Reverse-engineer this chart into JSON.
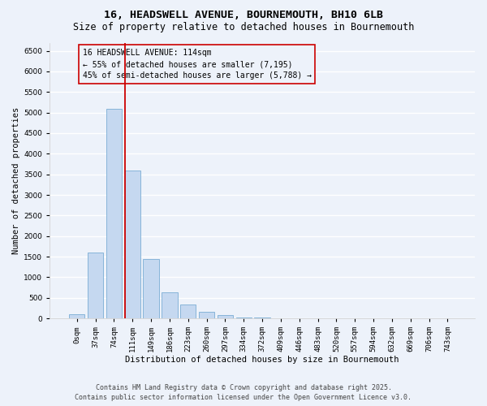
{
  "title_line1": "16, HEADSWELL AVENUE, BOURNEMOUTH, BH10 6LB",
  "title_line2": "Size of property relative to detached houses in Bournemouth",
  "xlabel": "Distribution of detached houses by size in Bournemouth",
  "ylabel": "Number of detached properties",
  "bar_labels": [
    "0sqm",
    "37sqm",
    "74sqm",
    "111sqm",
    "149sqm",
    "186sqm",
    "223sqm",
    "260sqm",
    "297sqm",
    "334sqm",
    "372sqm",
    "409sqm",
    "446sqm",
    "483sqm",
    "520sqm",
    "557sqm",
    "594sqm",
    "632sqm",
    "669sqm",
    "706sqm",
    "743sqm"
  ],
  "bar_values": [
    100,
    1600,
    5100,
    3600,
    1450,
    630,
    330,
    155,
    80,
    30,
    12,
    5,
    4,
    2,
    1,
    1,
    0,
    0,
    0,
    0,
    0
  ],
  "bar_color": "#c5d8f0",
  "bar_edge_color": "#7aadd4",
  "vline_color": "#cc0000",
  "annotation_title": "16 HEADSWELL AVENUE: 114sqm",
  "annotation_line1": "← 55% of detached houses are smaller (7,195)",
  "annotation_line2": "45% of semi-detached houses are larger (5,788) →",
  "annotation_box_color": "#cc0000",
  "ylim": [
    0,
    6700
  ],
  "yticks": [
    0,
    500,
    1000,
    1500,
    2000,
    2500,
    3000,
    3500,
    4000,
    4500,
    5000,
    5500,
    6000,
    6500
  ],
  "footnote_line1": "Contains HM Land Registry data © Crown copyright and database right 2025.",
  "footnote_line2": "Contains public sector information licensed under the Open Government Licence v3.0.",
  "bg_color": "#edf2fa",
  "grid_color": "#ffffff",
  "title_fontsize": 9.5,
  "subtitle_fontsize": 8.5,
  "axis_label_fontsize": 7.5,
  "tick_fontsize": 6.5,
  "annotation_fontsize": 7,
  "footnote_fontsize": 6
}
